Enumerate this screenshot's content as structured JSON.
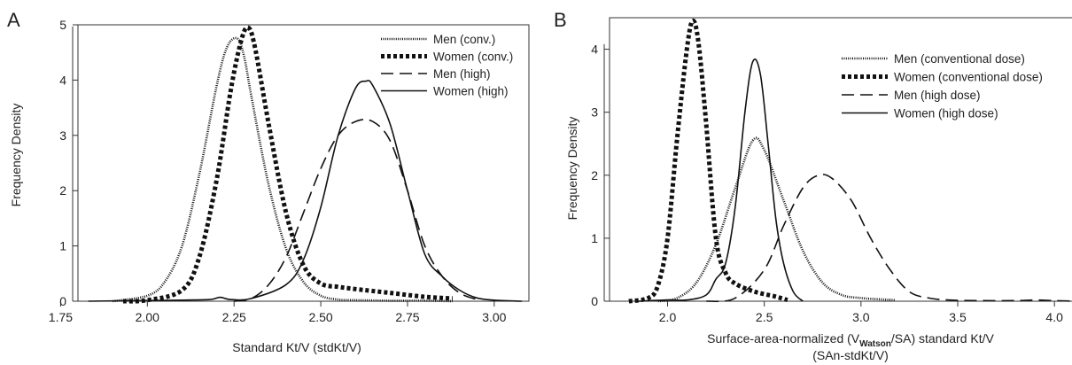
{
  "chart_data": [
    {
      "type": "line",
      "panel_label": "A",
      "xlabel": "Standard Kt/V (stdKt/V)",
      "ylabel": "Frequency Density",
      "xlim": [
        1.8,
        3.1
      ],
      "ylim": [
        0,
        5
      ],
      "xticks": [
        "1.75",
        "2.00",
        "2.25",
        "2.50",
        "2.75",
        "3.00"
      ],
      "yticks": [
        "0",
        "1",
        "2",
        "3",
        "4",
        "5"
      ],
      "legend_position": "top-right",
      "series": [
        {
          "name": "Men (conv.)",
          "style": "dotted-thin",
          "x": [
            1.9,
            2.0,
            2.05,
            2.1,
            2.15,
            2.2,
            2.23,
            2.26,
            2.28,
            2.3,
            2.35,
            2.4,
            2.45,
            2.5,
            2.55,
            2.6,
            2.7,
            2.8,
            2.88
          ],
          "y": [
            0.0,
            0.1,
            0.35,
            1.0,
            2.3,
            3.9,
            4.6,
            4.75,
            4.4,
            3.7,
            2.1,
            0.95,
            0.35,
            0.1,
            0.03,
            0.02,
            0.01,
            0.01,
            0.0
          ]
        },
        {
          "name": "Women (conv.)",
          "style": "dotted-thick",
          "x": [
            1.93,
            2.0,
            2.1,
            2.15,
            2.2,
            2.24,
            2.27,
            2.29,
            2.31,
            2.35,
            2.4,
            2.45,
            2.5,
            2.55,
            2.6,
            2.7,
            2.8,
            2.88
          ],
          "y": [
            0.0,
            0.02,
            0.2,
            0.8,
            2.2,
            3.8,
            4.7,
            4.95,
            4.6,
            3.2,
            1.6,
            0.65,
            0.32,
            0.26,
            0.22,
            0.15,
            0.08,
            0.05
          ]
        },
        {
          "name": "Men (high)",
          "style": "dashed",
          "x": [
            2.25,
            2.3,
            2.35,
            2.4,
            2.45,
            2.5,
            2.55,
            2.6,
            2.65,
            2.7,
            2.75,
            2.8,
            2.85,
            2.9,
            2.95
          ],
          "y": [
            0.0,
            0.05,
            0.3,
            0.8,
            1.6,
            2.4,
            3.0,
            3.25,
            3.25,
            2.9,
            2.0,
            1.0,
            0.45,
            0.15,
            0.03
          ]
        },
        {
          "name": "Women (high)",
          "style": "solid",
          "x": [
            1.83,
            1.95,
            2.1,
            2.18,
            2.21,
            2.24,
            2.3,
            2.4,
            2.45,
            2.5,
            2.55,
            2.6,
            2.63,
            2.65,
            2.7,
            2.75,
            2.8,
            2.85,
            2.9,
            2.95,
            3.0,
            3.08
          ],
          "y": [
            0.0,
            0.01,
            0.02,
            0.03,
            0.07,
            0.03,
            0.05,
            0.3,
            0.75,
            1.7,
            3.0,
            3.85,
            3.98,
            3.9,
            3.2,
            2.0,
            0.85,
            0.45,
            0.2,
            0.06,
            0.02,
            0.0
          ]
        }
      ]
    },
    {
      "type": "line",
      "panel_label": "B",
      "xlabel": "Surface-area-normalized (V",
      "xlabel_subscript": "Watson",
      "xlabel_suffix": "/SA) standard Kt/V",
      "xlabel_line2": "(SAn-stdKt/V)",
      "ylabel": "Frequency Density",
      "xlim": [
        1.7,
        4.1
      ],
      "ylim": [
        0,
        4.5
      ],
      "xticks": [
        "2.0",
        "2.5",
        "3.0",
        "3.5",
        "4.0"
      ],
      "yticks": [
        "0",
        "1",
        "2",
        "3",
        "4"
      ],
      "legend_position": "top-right",
      "series": [
        {
          "name": "Men (conventional dose)",
          "style": "dotted-thin",
          "x": [
            1.95,
            2.05,
            2.15,
            2.25,
            2.35,
            2.44,
            2.5,
            2.6,
            2.7,
            2.8,
            2.9,
            3.0,
            3.1,
            3.18
          ],
          "y": [
            0.0,
            0.05,
            0.3,
            0.9,
            1.8,
            2.55,
            2.4,
            1.6,
            0.8,
            0.3,
            0.1,
            0.05,
            0.03,
            0.02
          ]
        },
        {
          "name": "Women (conventional dose)",
          "style": "dotted-thick",
          "x": [
            1.8,
            1.9,
            1.95,
            2.0,
            2.05,
            2.1,
            2.13,
            2.16,
            2.2,
            2.25,
            2.3,
            2.35,
            2.45,
            2.55,
            2.62
          ],
          "y": [
            0.0,
            0.05,
            0.25,
            1.0,
            2.6,
            4.0,
            4.45,
            4.1,
            2.8,
            1.0,
            0.45,
            0.28,
            0.15,
            0.08,
            0.02
          ]
        },
        {
          "name": "Men (high dose)",
          "style": "dashed",
          "x": [
            2.2,
            2.35,
            2.5,
            2.6,
            2.7,
            2.78,
            2.85,
            2.95,
            3.05,
            3.15,
            3.25,
            3.35,
            3.45,
            3.6,
            3.8,
            3.9,
            4.0,
            4.1
          ],
          "y": [
            0.0,
            0.05,
            0.5,
            1.2,
            1.8,
            2.0,
            1.95,
            1.6,
            1.0,
            0.5,
            0.15,
            0.05,
            0.02,
            0.01,
            0.01,
            0.02,
            0.01,
            0.0
          ]
        },
        {
          "name": "Women (high dose)",
          "style": "solid",
          "x": [
            1.85,
            2.0,
            2.1,
            2.2,
            2.25,
            2.3,
            2.35,
            2.4,
            2.44,
            2.48,
            2.52,
            2.56,
            2.6,
            2.65,
            2.7
          ],
          "y": [
            0.0,
            0.02,
            0.02,
            0.1,
            0.35,
            0.6,
            1.5,
            3.0,
            3.8,
            3.6,
            2.5,
            1.3,
            0.6,
            0.15,
            0.0
          ]
        }
      ]
    }
  ]
}
